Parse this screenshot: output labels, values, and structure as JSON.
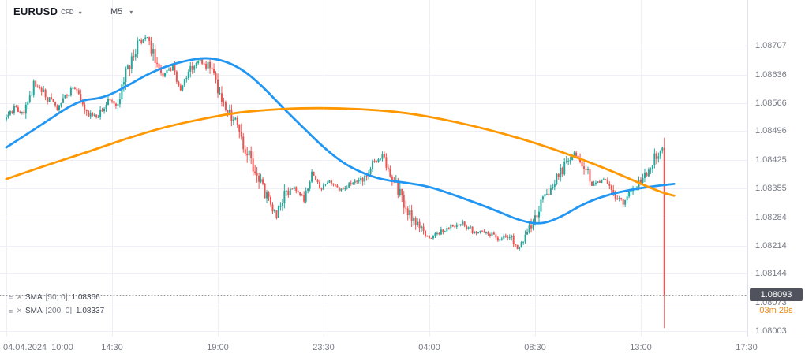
{
  "header": {
    "symbol": "EURUSD",
    "symbol_type": "CFD",
    "timeframe": "M5"
  },
  "icons": {
    "caret": "▾",
    "indicator_menu": "≡",
    "indicator_close": "✕"
  },
  "legend": {
    "rows": [
      {
        "name": "SMA",
        "params": "[50, 0]",
        "value": "1.08366"
      },
      {
        "name": "SMA",
        "params": "[200, 0]",
        "value": "1.08337"
      }
    ]
  },
  "price_axis": {
    "ticks": [
      "1.08707",
      "1.08636",
      "1.08566",
      "1.08496",
      "1.08425",
      "1.08355",
      "1.08284",
      "1.08214",
      "1.08144",
      "1.08073",
      "1.08003"
    ],
    "last_price": "1.08093",
    "countdown": "03m 29s"
  },
  "time_axis": {
    "ticks": [
      "04.04.2024  10:00",
      "14:30",
      "19:00",
      "23:30",
      "04:00",
      "08:30",
      "13:00",
      "17:30"
    ]
  },
  "colors": {
    "up": "#26a69a",
    "down": "#ef5350",
    "sma50": "#2196f3",
    "sma200": "#ff9800",
    "grid": "#eef0f5",
    "axis_text": "#787b86",
    "badge_bg": "#50535e",
    "badge_text": "#ffffff",
    "countdown": "#ef8c17",
    "last_price_line": "#9598a1"
  },
  "chart_data": {
    "type": "candlestick",
    "symbol": "EURUSD CFD",
    "interval_minutes": 5,
    "x_start_label": "04.04.2024 10:00",
    "x_range_minutes": [
      0,
      1890
    ],
    "y_range": [
      1.08003,
      1.08707
    ],
    "grid": true,
    "last_price": 1.08093,
    "close_path": [
      [
        0,
        1.08525
      ],
      [
        20,
        1.08555
      ],
      [
        45,
        1.08535
      ],
      [
        70,
        1.0861
      ],
      [
        100,
        1.08585
      ],
      [
        130,
        1.0855
      ],
      [
        170,
        1.08605
      ],
      [
        205,
        1.08545
      ],
      [
        235,
        1.0853
      ],
      [
        260,
        1.08575
      ],
      [
        285,
        1.08555
      ],
      [
        310,
        1.0865
      ],
      [
        340,
        1.08715
      ],
      [
        355,
        1.0873
      ],
      [
        375,
        1.08685
      ],
      [
        400,
        1.08635
      ],
      [
        425,
        1.08655
      ],
      [
        445,
        1.08595
      ],
      [
        470,
        1.08655
      ],
      [
        495,
        1.0867
      ],
      [
        520,
        1.0865
      ],
      [
        545,
        1.08595
      ],
      [
        570,
        1.0854
      ],
      [
        595,
        1.08495
      ],
      [
        620,
        1.0843
      ],
      [
        645,
        1.0837
      ],
      [
        670,
        1.0832
      ],
      [
        690,
        1.0829
      ],
      [
        710,
        1.0834
      ],
      [
        735,
        1.0836
      ],
      [
        760,
        1.0833
      ],
      [
        780,
        1.08395
      ],
      [
        800,
        1.08355
      ],
      [
        825,
        1.0837
      ],
      [
        850,
        1.0835
      ],
      [
        880,
        1.08365
      ],
      [
        910,
        1.0838
      ],
      [
        935,
        1.08415
      ],
      [
        960,
        1.08435
      ],
      [
        985,
        1.0839
      ],
      [
        1010,
        1.0833
      ],
      [
        1035,
        1.0828
      ],
      [
        1060,
        1.0825
      ],
      [
        1080,
        1.0823
      ],
      [
        1105,
        1.08245
      ],
      [
        1135,
        1.0826
      ],
      [
        1165,
        1.0827
      ],
      [
        1195,
        1.08245
      ],
      [
        1225,
        1.0825
      ],
      [
        1255,
        1.0823
      ],
      [
        1285,
        1.0824
      ],
      [
        1305,
        1.08205
      ],
      [
        1330,
        1.0824
      ],
      [
        1360,
        1.083
      ],
      [
        1390,
        1.0836
      ],
      [
        1420,
        1.084
      ],
      [
        1450,
        1.0844
      ],
      [
        1475,
        1.08415
      ],
      [
        1500,
        1.0836
      ],
      [
        1525,
        1.0838
      ],
      [
        1550,
        1.0834
      ],
      [
        1575,
        1.0832
      ],
      [
        1600,
        1.0836
      ],
      [
        1625,
        1.08375
      ],
      [
        1650,
        1.0842
      ],
      [
        1675,
        1.08455
      ]
    ],
    "last_candle": {
      "time_minutes": 1680,
      "open": 1.08455,
      "high": 1.0848,
      "low": 1.0801,
      "close": 1.08093
    },
    "overlays": [
      {
        "name": "SMA 50",
        "period": 50,
        "color": "#2196f3",
        "points": [
          [
            0,
            1.08456
          ],
          [
            85,
            1.08509
          ],
          [
            185,
            1.08573
          ],
          [
            246,
            1.08577
          ],
          [
            306,
            1.08606
          ],
          [
            357,
            1.08635
          ],
          [
            407,
            1.08656
          ],
          [
            457,
            1.0867
          ],
          [
            508,
            1.08678
          ],
          [
            558,
            1.0867
          ],
          [
            609,
            1.08645
          ],
          [
            659,
            1.08602
          ],
          [
            709,
            1.08551
          ],
          [
            760,
            1.08503
          ],
          [
            810,
            1.08456
          ],
          [
            860,
            1.08417
          ],
          [
            911,
            1.08392
          ],
          [
            961,
            1.08376
          ],
          [
            1021,
            1.08369
          ],
          [
            1082,
            1.08359
          ],
          [
            1142,
            1.08339
          ],
          [
            1203,
            1.08318
          ],
          [
            1263,
            1.08295
          ],
          [
            1313,
            1.08275
          ],
          [
            1364,
            1.08266
          ],
          [
            1414,
            1.08283
          ],
          [
            1475,
            1.08318
          ],
          [
            1535,
            1.08339
          ],
          [
            1595,
            1.08352
          ],
          [
            1650,
            1.0836
          ],
          [
            1705,
            1.08366
          ]
        ]
      },
      {
        "name": "SMA 200",
        "period": 200,
        "color": "#ff9800",
        "points": [
          [
            0,
            1.08378
          ],
          [
            105,
            1.08413
          ],
          [
            206,
            1.08444
          ],
          [
            306,
            1.08478
          ],
          [
            407,
            1.08507
          ],
          [
            508,
            1.08528
          ],
          [
            588,
            1.08542
          ],
          [
            669,
            1.08549
          ],
          [
            749,
            1.08553
          ],
          [
            850,
            1.08553
          ],
          [
            951,
            1.08548
          ],
          [
            1031,
            1.0854
          ],
          [
            1112,
            1.08526
          ],
          [
            1193,
            1.08509
          ],
          [
            1273,
            1.08489
          ],
          [
            1354,
            1.08466
          ],
          [
            1434,
            1.08439
          ],
          [
            1495,
            1.08417
          ],
          [
            1555,
            1.08394
          ],
          [
            1616,
            1.08368
          ],
          [
            1676,
            1.08344
          ],
          [
            1705,
            1.08337
          ]
        ]
      }
    ]
  }
}
